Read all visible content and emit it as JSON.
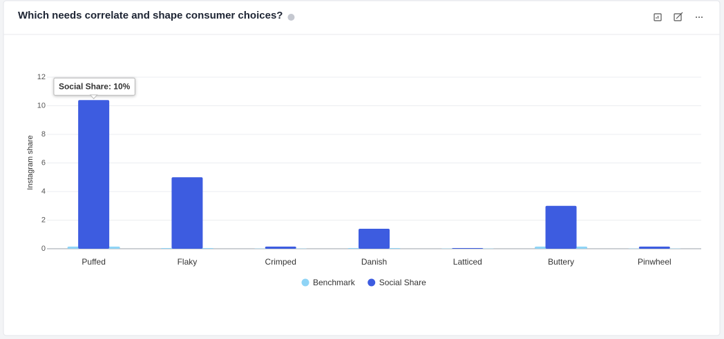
{
  "chart_data": {
    "type": "bar",
    "title": "Which needs correlate and shape consumer choices?",
    "y_label": "Instagram share",
    "categories": [
      "Puffed",
      "Flaky",
      "Crimped",
      "Danish",
      "Latticed",
      "Buttery",
      "Pinwheel"
    ],
    "series": [
      {
        "name": "Benchmark",
        "color": "#8fd4f6",
        "values": [
          0.15,
          0.05,
          0.02,
          0.05,
          0.02,
          0.15,
          0.02
        ]
      },
      {
        "name": "Social Share",
        "color": "#3d5ce0",
        "values": [
          10.4,
          5.0,
          0.15,
          1.4,
          0.05,
          3.0,
          0.15
        ]
      }
    ],
    "ylim": [
      0,
      12
    ],
    "yticks": [
      0,
      2,
      4,
      6,
      8,
      10,
      12
    ],
    "grid": true,
    "tooltip": "Social Share: 10%"
  }
}
